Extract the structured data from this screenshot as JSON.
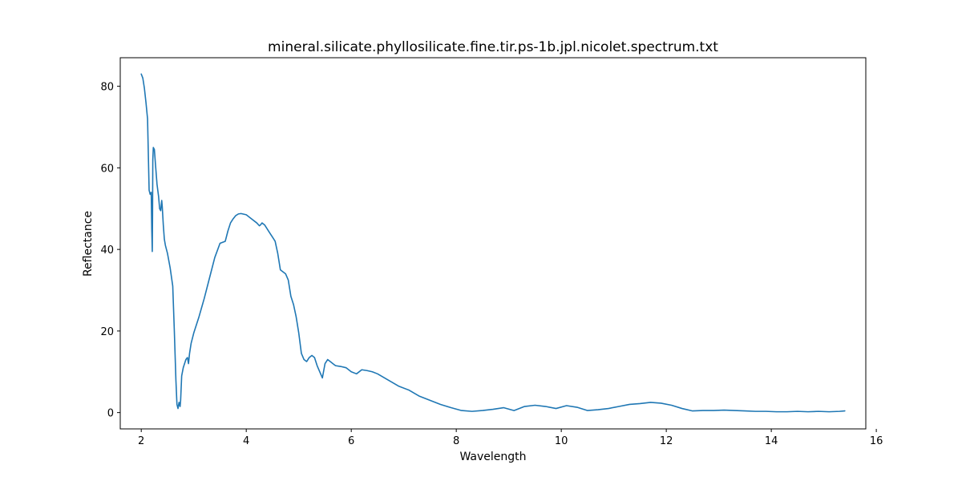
{
  "chart_data": {
    "type": "line",
    "title": "mineral.silicate.phyllosilicate.fine.tir.ps-1b.jpl.nicolet.spectrum.txt",
    "xlabel": "Wavelength",
    "ylabel": "Reflectance",
    "xlim": [
      1.6,
      15.8
    ],
    "ylim": [
      -4,
      87
    ],
    "xticks": [
      2,
      4,
      6,
      8,
      10,
      12,
      14,
      16
    ],
    "yticks": [
      0,
      20,
      40,
      60,
      80
    ],
    "grid": false,
    "legend": "none",
    "series": [
      {
        "color": "#1f77b4",
        "x": [
          2.0,
          2.03,
          2.06,
          2.09,
          2.12,
          2.15,
          2.17,
          2.19,
          2.2,
          2.21,
          2.215,
          2.22,
          2.23,
          2.25,
          2.27,
          2.3,
          2.33,
          2.35,
          2.37,
          2.39,
          2.4,
          2.42,
          2.44,
          2.46,
          2.5,
          2.55,
          2.6,
          2.63,
          2.66,
          2.68,
          2.7,
          2.72,
          2.74,
          2.75,
          2.77,
          2.8,
          2.85,
          2.88,
          2.9,
          2.92,
          2.95,
          3.0,
          3.1,
          3.2,
          3.3,
          3.4,
          3.5,
          3.6,
          3.65,
          3.7,
          3.75,
          3.8,
          3.85,
          3.9,
          4.0,
          4.1,
          4.2,
          4.25,
          4.27,
          4.3,
          4.35,
          4.4,
          4.45,
          4.5,
          4.55,
          4.6,
          4.65,
          4.7,
          4.75,
          4.8,
          4.85,
          4.9,
          4.95,
          5.0,
          5.05,
          5.1,
          5.15,
          5.2,
          5.25,
          5.3,
          5.35,
          5.4,
          5.45,
          5.5,
          5.55,
          5.6,
          5.65,
          5.7,
          5.8,
          5.9,
          6.0,
          6.1,
          6.2,
          6.3,
          6.4,
          6.5,
          6.7,
          6.9,
          7.1,
          7.3,
          7.5,
          7.7,
          7.9,
          8.1,
          8.3,
          8.5,
          8.7,
          8.9,
          9.1,
          9.3,
          9.5,
          9.7,
          9.9,
          10.1,
          10.3,
          10.5,
          10.7,
          10.9,
          11.1,
          11.3,
          11.5,
          11.7,
          11.9,
          12.1,
          12.3,
          12.5,
          12.7,
          12.9,
          13.1,
          13.3,
          13.5,
          13.7,
          13.9,
          14.1,
          14.3,
          14.5,
          14.7,
          14.9,
          15.1,
          15.3,
          15.4
        ],
        "y": [
          83.0,
          82.0,
          79.5,
          76.0,
          72.0,
          54.5,
          53.5,
          54.0,
          45.0,
          39.5,
          48.0,
          62.0,
          65.0,
          64.5,
          61.0,
          56.0,
          53.0,
          50.0,
          49.5,
          52.0,
          50.5,
          46.0,
          42.5,
          41.0,
          39.0,
          35.5,
          31.0,
          20.0,
          8.0,
          2.0,
          1.0,
          2.5,
          1.5,
          3.0,
          9.0,
          11.0,
          13.0,
          13.5,
          12.0,
          14.5,
          17.0,
          19.5,
          23.5,
          28.0,
          33.0,
          38.0,
          41.5,
          42.0,
          44.5,
          46.5,
          47.5,
          48.3,
          48.7,
          48.8,
          48.5,
          47.5,
          46.5,
          45.8,
          46.0,
          46.5,
          46.0,
          45.0,
          44.0,
          43.0,
          42.0,
          39.0,
          35.0,
          34.5,
          34.0,
          32.5,
          28.5,
          26.5,
          23.5,
          19.5,
          14.5,
          13.0,
          12.5,
          13.5,
          14.0,
          13.5,
          11.5,
          10.0,
          8.5,
          12.0,
          13.0,
          12.5,
          12.0,
          11.5,
          11.3,
          11.0,
          10.0,
          9.5,
          10.5,
          10.3,
          10.0,
          9.5,
          8.0,
          6.5,
          5.5,
          4.0,
          3.0,
          2.0,
          1.2,
          0.5,
          0.3,
          0.5,
          0.8,
          1.2,
          0.5,
          1.5,
          1.8,
          1.5,
          1.0,
          1.7,
          1.3,
          0.5,
          0.7,
          1.0,
          1.5,
          2.0,
          2.2,
          2.5,
          2.3,
          1.8,
          1.0,
          0.4,
          0.5,
          0.5,
          0.6,
          0.5,
          0.4,
          0.3,
          0.3,
          0.2,
          0.2,
          0.3,
          0.2,
          0.3,
          0.2,
          0.3,
          0.4
        ]
      }
    ]
  }
}
